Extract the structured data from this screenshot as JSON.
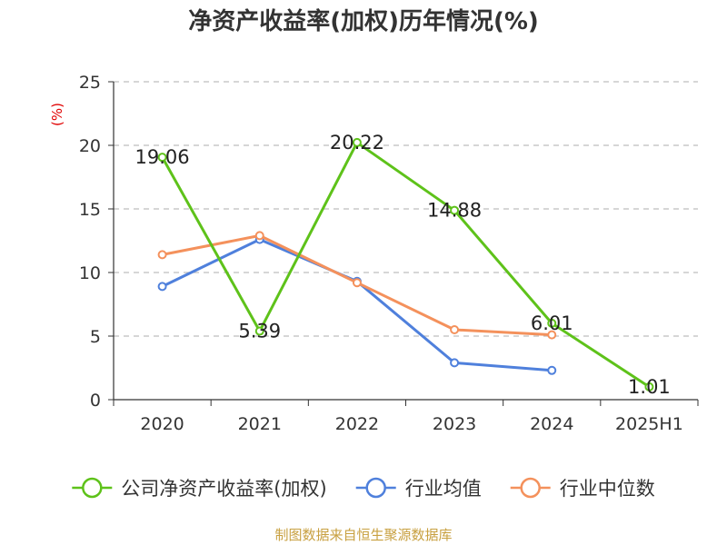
{
  "chart_data": {
    "type": "line",
    "title": "净资产收益率(加权)历年情况(%)",
    "ylabel": "(%)",
    "categories": [
      "2020",
      "2021",
      "2022",
      "2023",
      "2024",
      "2025H1"
    ],
    "ylim": [
      0,
      25
    ],
    "yticks": [
      "0",
      "5",
      "10",
      "15",
      "20",
      "25"
    ],
    "grid": true,
    "legend_position": "bottom",
    "series": [
      {
        "name": "公司净资产收益率(加权)",
        "color": "#5ec21a",
        "values": [
          19.06,
          5.39,
          20.22,
          14.88,
          6.01,
          1.01
        ],
        "labels": [
          "19.06",
          "5.39",
          "20.22",
          "14.88",
          "6.01",
          "1.01"
        ]
      },
      {
        "name": "行业均值",
        "color": "#4f80dc",
        "values": [
          8.9,
          12.6,
          9.3,
          2.9,
          2.3,
          null
        ]
      },
      {
        "name": "行业中位数",
        "color": "#f4915c",
        "values": [
          11.4,
          12.9,
          9.2,
          5.5,
          5.1,
          null
        ]
      }
    ],
    "source": "制图数据来自恒生聚源数据库"
  }
}
